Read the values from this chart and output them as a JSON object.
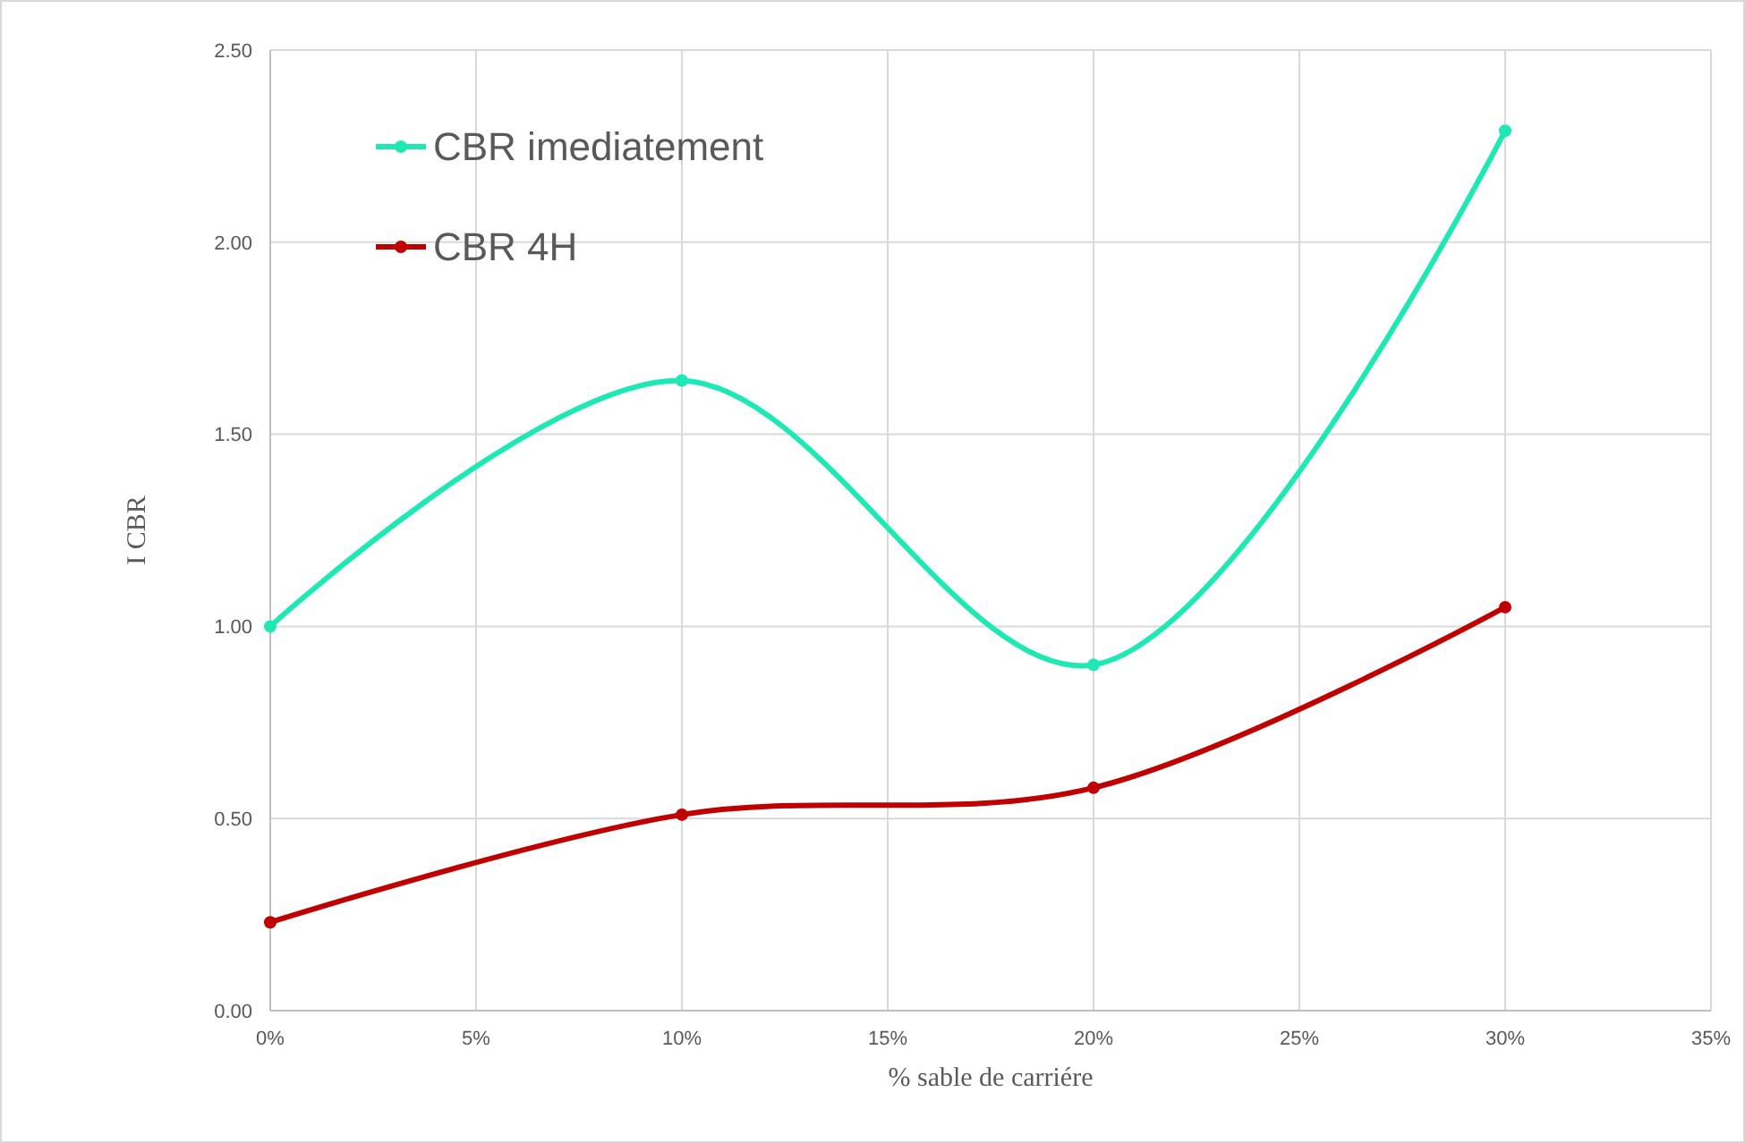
{
  "chart_data": {
    "type": "line",
    "xlabel": "% sable de carriére",
    "ylabel": "I CBR",
    "x": [
      0,
      10,
      20,
      30
    ],
    "series": [
      {
        "name": "CBR imediatement",
        "color": "#1ee8b4",
        "values": [
          1.0,
          1.64,
          0.9,
          2.29
        ]
      },
      {
        "name": "CBR 4H",
        "color": "#c00000",
        "values": [
          0.23,
          0.51,
          0.58,
          1.05
        ]
      }
    ],
    "xlim": [
      0,
      35
    ],
    "xticks": [
      {
        "value": 0,
        "label": "0%"
      },
      {
        "value": 5,
        "label": "5%"
      },
      {
        "value": 10,
        "label": "10%"
      },
      {
        "value": 15,
        "label": "15%"
      },
      {
        "value": 20,
        "label": "20%"
      },
      {
        "value": 25,
        "label": "25%"
      },
      {
        "value": 30,
        "label": "30%"
      },
      {
        "value": 35,
        "label": "35%"
      }
    ],
    "ylim": [
      0,
      2.5
    ],
    "yticks": [
      {
        "value": 0,
        "label": "0.00"
      },
      {
        "value": 0.5,
        "label": "0.50"
      },
      {
        "value": 1,
        "label": "1.00"
      },
      {
        "value": 1.5,
        "label": "1.50"
      },
      {
        "value": 2,
        "label": "2.00"
      },
      {
        "value": 2.5,
        "label": "2.50"
      }
    ],
    "grid": true,
    "legend": "top left",
    "marker": "circle",
    "line_style": "solid"
  }
}
